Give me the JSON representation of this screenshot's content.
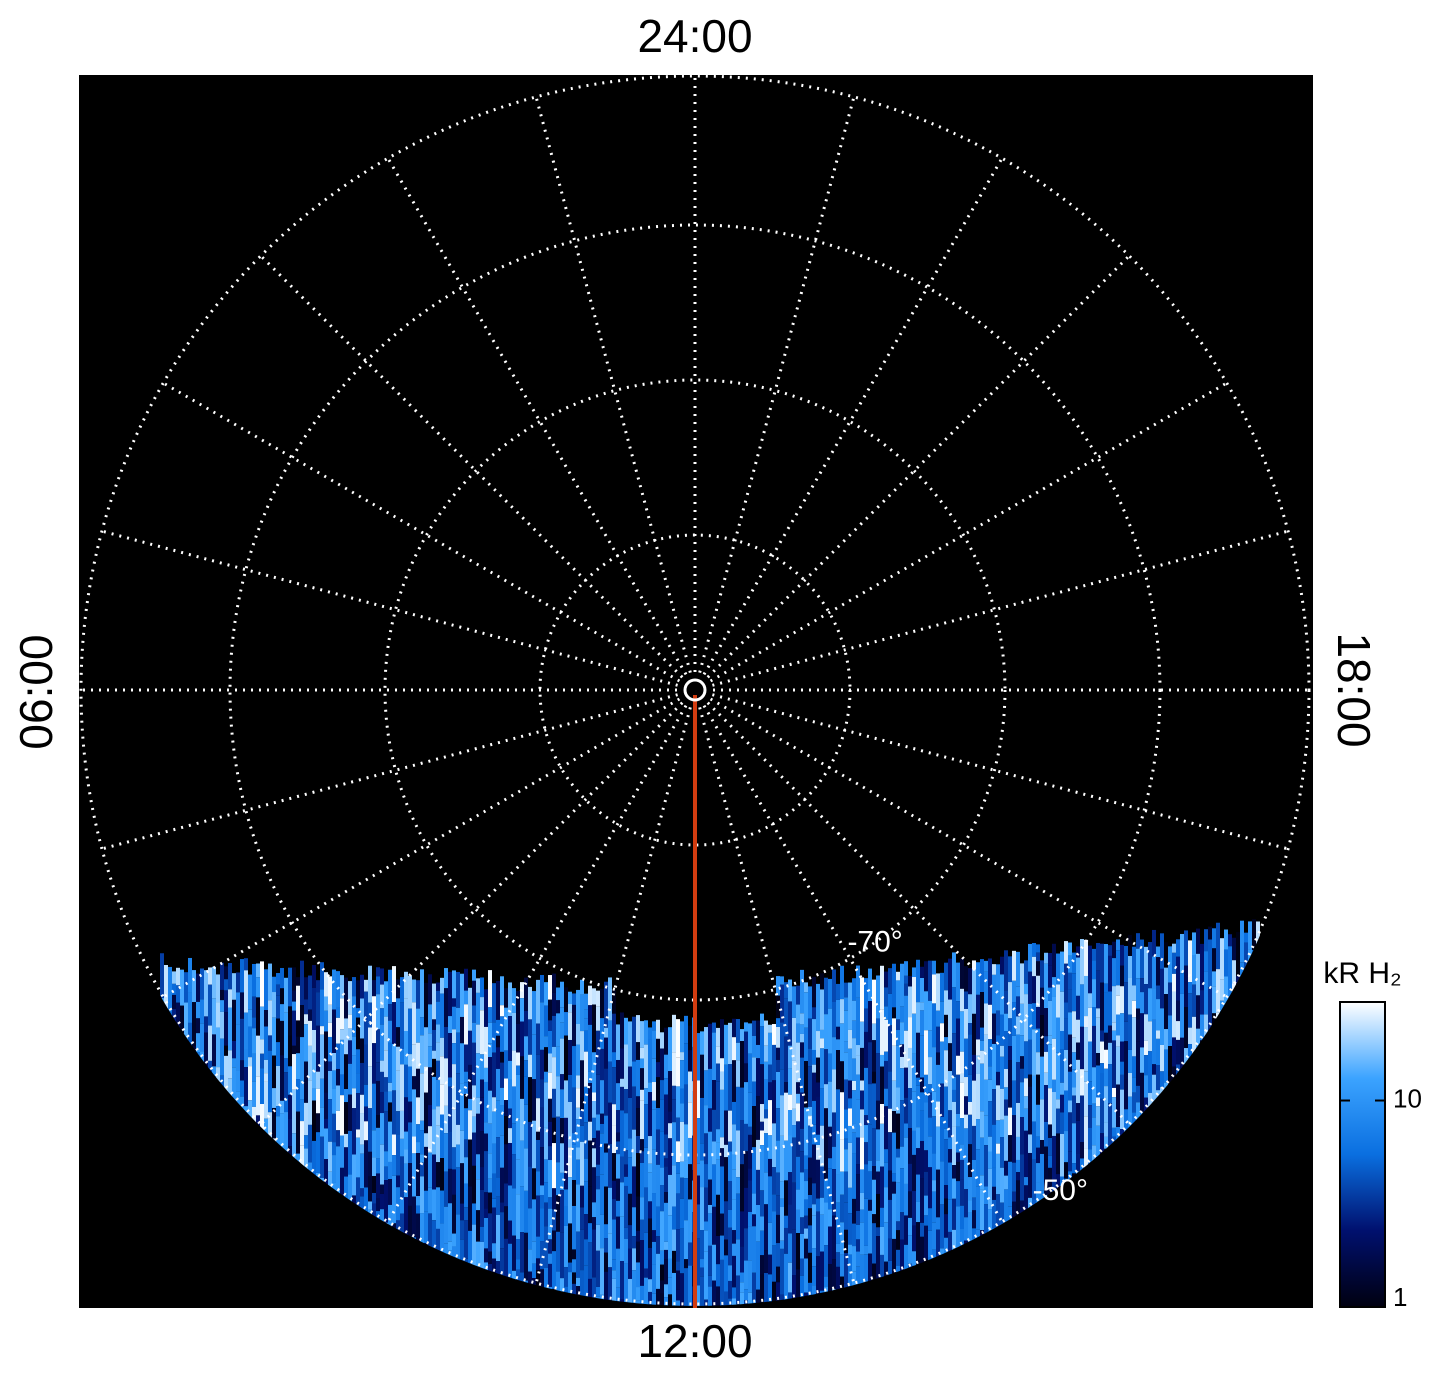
{
  "chart_data": {
    "type": "polar",
    "local_time_labels": [
      "24:00",
      "06:00",
      "12:00",
      "18:00"
    ],
    "latitude_labels": [
      {
        "value": -70,
        "label": "-70°"
      },
      {
        "value": -50,
        "label": "-50°"
      }
    ],
    "grid": true,
    "colorbar": {
      "label": "kR H₂",
      "scale": "log",
      "lim": [
        1,
        30
      ],
      "ticks": [
        1,
        10
      ],
      "colors": [
        "#000010",
        "#00106e",
        "#0a6fe0",
        "#3ba3ff",
        "#ffffff"
      ]
    }
  }
}
